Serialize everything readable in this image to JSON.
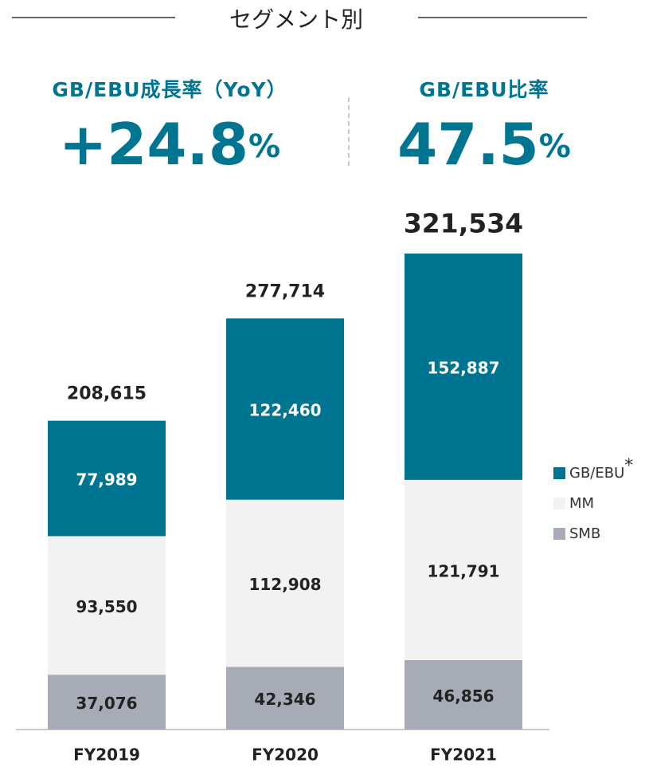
{
  "chart_data": {
    "type": "stacked_bar",
    "title": "セグメント別",
    "kpis": [
      {
        "label": "GB/EBU成長率（YoY）",
        "value": "+24.8",
        "unit": "%"
      },
      {
        "label": "GB/EBU比率",
        "value": "47.5",
        "unit": "%"
      }
    ],
    "categories": [
      "FY2019",
      "FY2020",
      "FY2021"
    ],
    "series": [
      {
        "name": "SMB",
        "color": "#a7abb6",
        "values": [
          37076,
          42346,
          46856
        ],
        "value_labels": [
          "37,076",
          "42,346",
          "46,856"
        ]
      },
      {
        "name": "MM",
        "color": "#f2f2f2",
        "values": [
          93550,
          112908,
          121791
        ],
        "value_labels": [
          "93,550",
          "112,908",
          "121,791"
        ]
      },
      {
        "name": "GB/EBU",
        "marker": "*",
        "color": "#007591",
        "values": [
          77989,
          122460,
          152887
        ],
        "value_labels": [
          "77,989",
          "122,460",
          "152,887"
        ]
      }
    ],
    "totals": [
      208615,
      277714,
      321534
    ],
    "total_labels": [
      "208,615",
      "277,714",
      "321,534"
    ]
  }
}
